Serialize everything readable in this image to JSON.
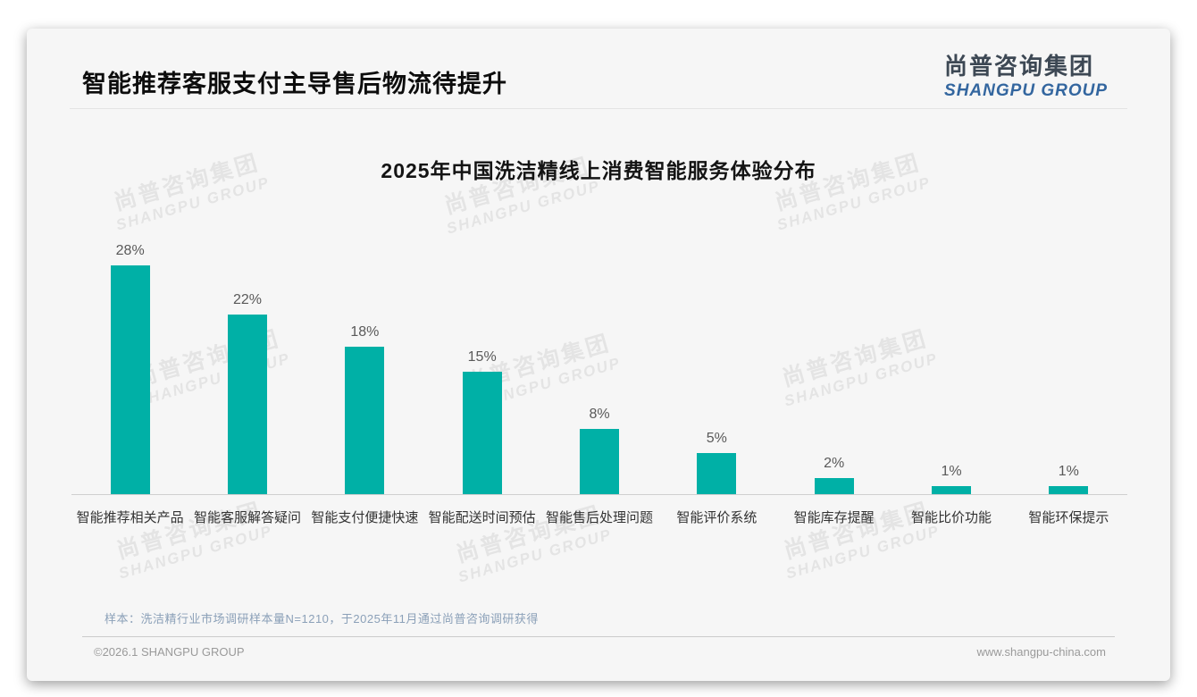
{
  "page": {
    "title": "智能推荐客服支付主导售后物流待提升",
    "sample_note": "样本：洗洁精行业市场调研样本量N=1210，于2025年11月通过尚普咨询调研获得",
    "footer_left": "©2026.1 SHANGPU GROUP",
    "footer_right": "www.shangpu-china.com"
  },
  "logo": {
    "cn": "尚普咨询集团",
    "en": "SHANGPU GROUP"
  },
  "watermark": {
    "cn": "尚普咨询集团",
    "en": "SHANGPU GROUP"
  },
  "colors": {
    "bar": "#00b0a6",
    "logo_cn": "#3d4854",
    "logo_en": "#33669f",
    "note": "#8ba0b8"
  },
  "chart_data": {
    "type": "bar",
    "title": "2025年中国洗洁精线上消费智能服务体验分布",
    "categories": [
      "智能推荐相关产品",
      "智能客服解答疑问",
      "智能支付便捷快速",
      "智能配送时间预估",
      "智能售后处理问题",
      "智能评价系统",
      "智能库存提醒",
      "智能比价功能",
      "智能环保提示"
    ],
    "values": [
      28,
      22,
      18,
      15,
      8,
      5,
      2,
      1,
      1
    ],
    "value_labels": [
      "28%",
      "22%",
      "18%",
      "15%",
      "8%",
      "5%",
      "2%",
      "1%",
      "1%"
    ],
    "unit": "%",
    "xlabel": "",
    "ylabel": "",
    "ylim": [
      0,
      30
    ],
    "grid": false,
    "legend": "none",
    "bar_color": "#00b0a6"
  }
}
